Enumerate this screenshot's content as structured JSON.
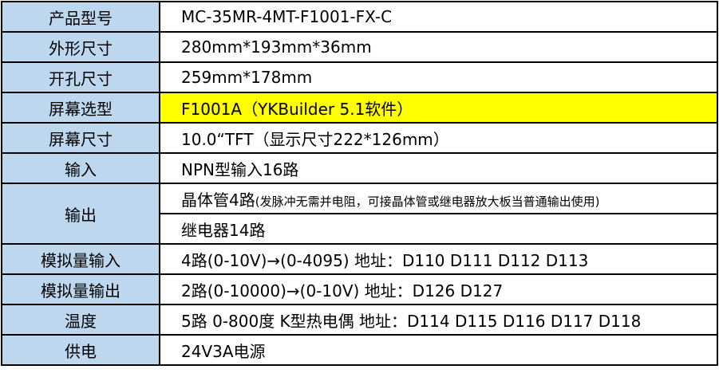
{
  "colors": {
    "label_bg": "#bdd7ee",
    "highlight": "#ffff00"
  },
  "rows": [
    {
      "label": "产品型号",
      "value": "MC-35MR-4MT-F1001-FX-C"
    },
    {
      "label": "外形尺寸",
      "value": "280mm*193mm*36mm"
    },
    {
      "label": "开孔尺寸",
      "value": "259mm*178mm"
    },
    {
      "label": "屏幕选型",
      "value": "F1001A（YKBuilder 5.1软件）"
    },
    {
      "label": "屏幕尺寸",
      "value": "10.0“TFT（显示尺寸222*126mm）"
    },
    {
      "label": "输入",
      "value": "NPN型输入16路"
    },
    {
      "label": "输出",
      "value": "晶体管4路",
      "note": "(发脉冲无需并电阻，可接晶体管或继电器放大板当普通输出使用)",
      "value2": "继电器14路"
    },
    {
      "label": "模拟量输入",
      "value": "4路(0-10V)→(0-4095) 地址：D110  D111  D112  D113"
    },
    {
      "label": "模拟量输出",
      "value": "2路(0-10000)→(0-10V) 地址：D126 D127"
    },
    {
      "label": "温度",
      "value": "5路 0-800度 K型热电偶 地址：D114 D115 D116 D117 D118"
    },
    {
      "label": "供电",
      "value": "24V3A电源"
    }
  ]
}
